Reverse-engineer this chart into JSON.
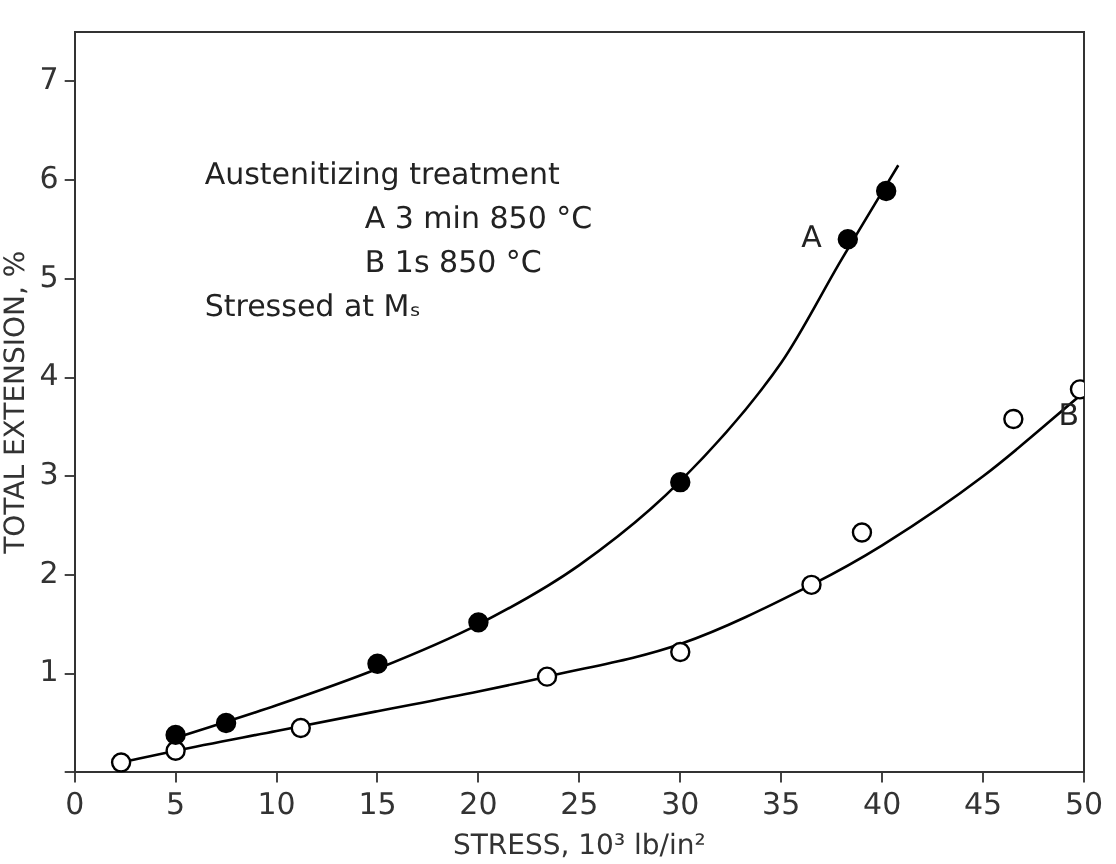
{
  "chart_data": {
    "type": "scatter",
    "xlabel": "STRESS, 10³ lb/in²",
    "ylabel": "TOTAL EXTENSION, %",
    "xlim": [
      0,
      50
    ],
    "xticks": [
      0,
      5,
      10,
      15,
      20,
      25,
      30,
      35,
      40,
      45,
      50
    ],
    "ylim": [
      0,
      7.5
    ],
    "yticks": [
      {
        "value": 0,
        "label": null
      },
      1,
      2,
      3,
      4,
      5,
      6,
      7
    ],
    "grid": false,
    "legend": false,
    "series": [
      {
        "marker": "circle",
        "color": "#000000",
        "x": [
          5,
          7.5,
          15,
          20,
          30,
          38.3,
          40.2
        ],
        "values": [
          0.38,
          0.5,
          1.1,
          1.52,
          2.94,
          5.4,
          5.89
        ]
      },
      {
        "marker": "circle",
        "color": "#000000",
        "x": [
          2.3,
          5,
          11.2,
          23.4,
          30,
          36.5,
          39,
          46.5,
          49.8
        ],
        "values": [
          0.1,
          0.22,
          0.45,
          0.97,
          1.22,
          1.9,
          2.43,
          3.58,
          3.88
        ]
      },
      {
        "type": "line",
        "marker": "none",
        "color": "#000000",
        "x": [
          5,
          10,
          15,
          20,
          25,
          30,
          35,
          38,
          40.8
        ],
        "values": [
          0.35,
          0.68,
          1.05,
          1.5,
          2.1,
          2.95,
          4.15,
          5.2,
          6.15
        ]
      },
      {
        "type": "line",
        "marker": "none",
        "color": "#000000",
        "x": [
          2.3,
          5,
          10,
          15,
          20,
          23.4,
          30,
          36.5,
          40,
          45,
          50
        ],
        "values": [
          0.1,
          0.22,
          0.42,
          0.62,
          0.82,
          0.97,
          1.3,
          1.9,
          2.3,
          3.0,
          3.85
        ]
      }
    ],
    "annotations": [
      "Austenitizing treatment",
      "A 3 min 850 °C",
      "B 1s 850 °C",
      "Stressed at Mₛ",
      "A",
      "B"
    ]
  }
}
